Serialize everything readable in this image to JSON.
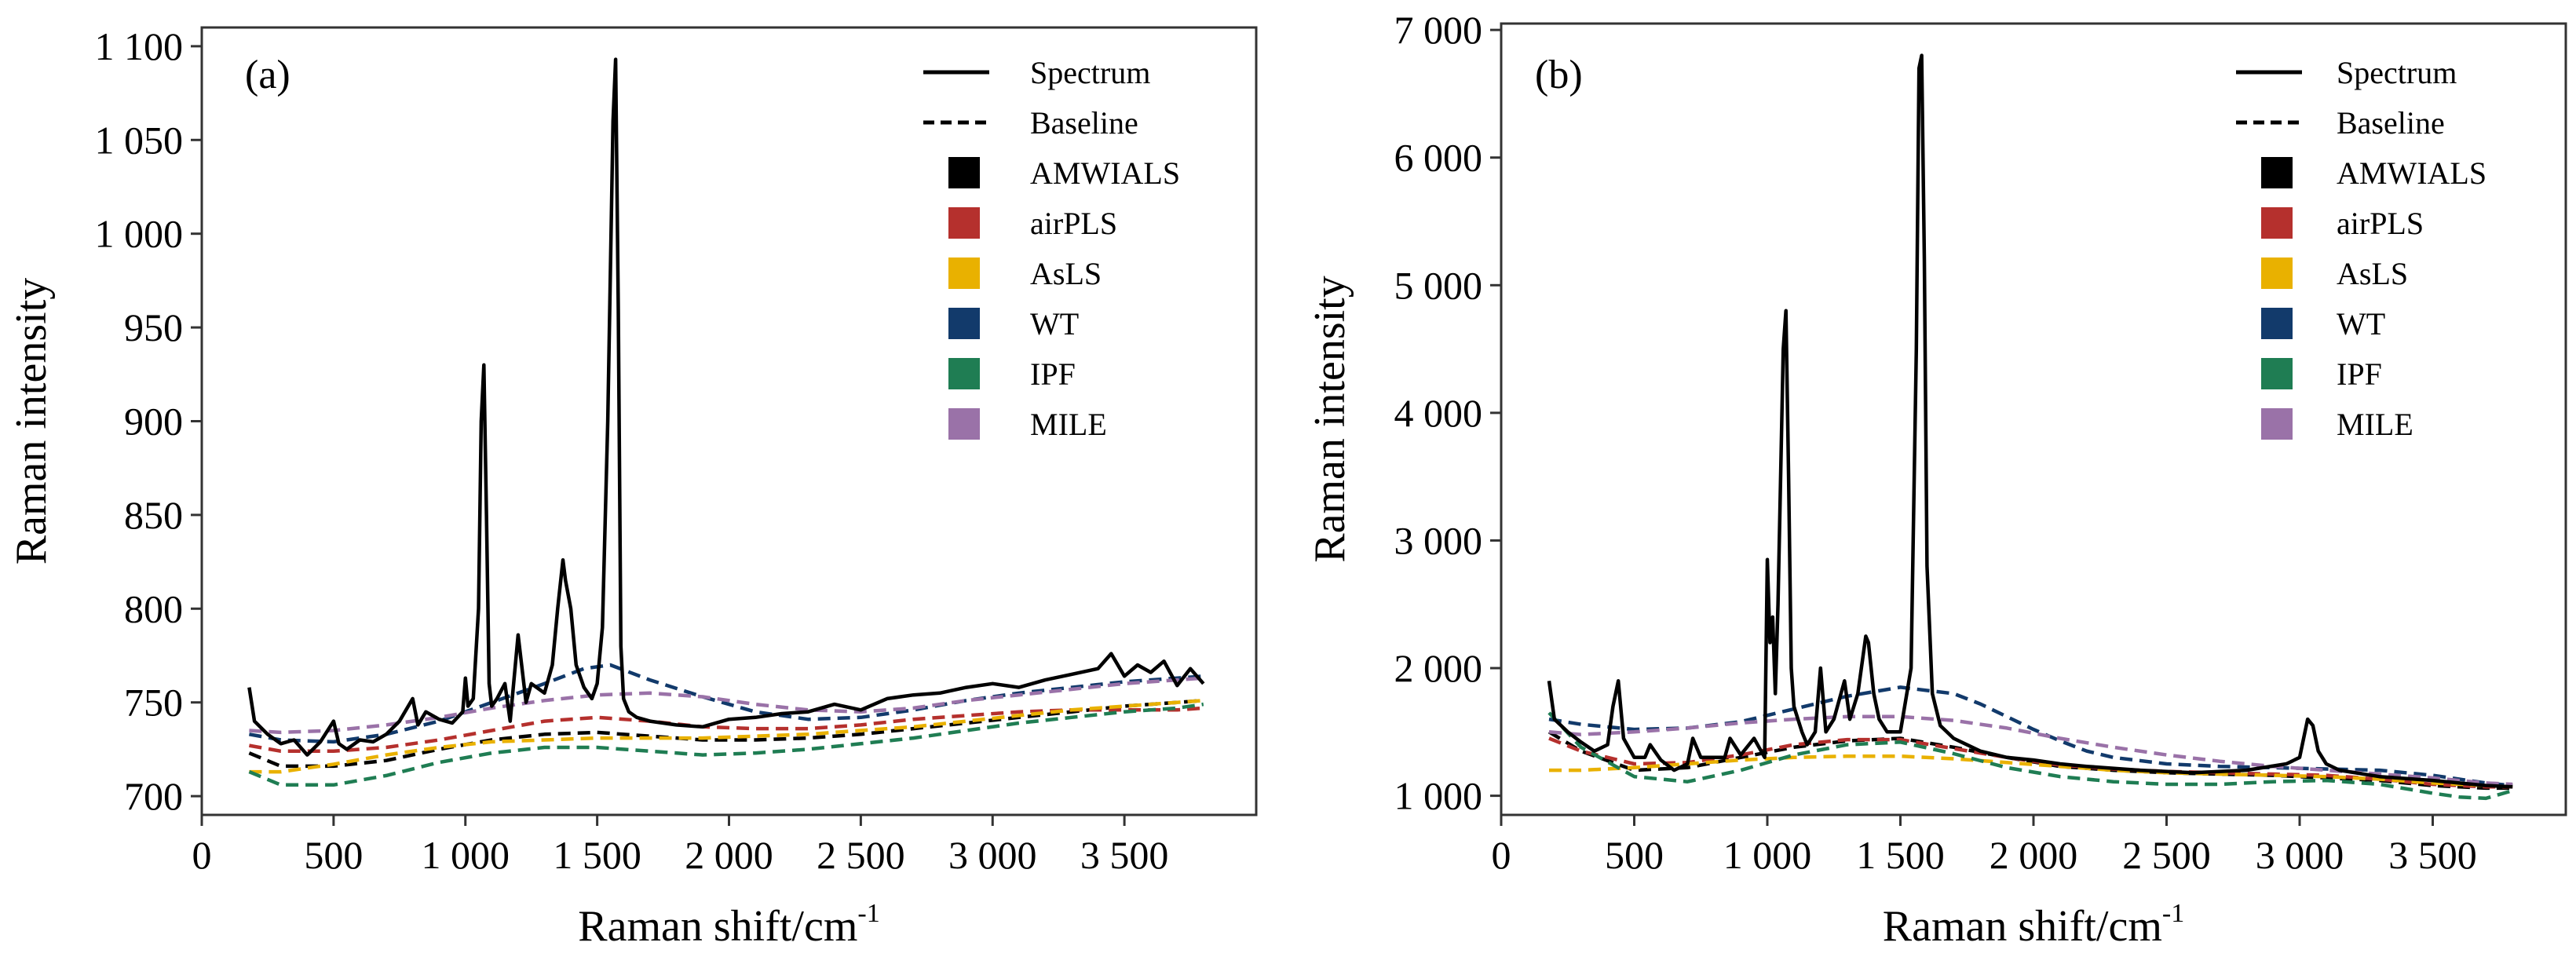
{
  "figure_name": "raman-baseline-comparison",
  "chart_data": [
    {
      "panel": "(a)",
      "type": "line",
      "xlabel": "Raman shift/cm-1",
      "xlabel_main": "Raman shift/cm",
      "xlabel_sup": "-1",
      "ylabel": "Raman intensity",
      "xlim": [
        0,
        4000
      ],
      "ylim": [
        690,
        1110
      ],
      "grid": false,
      "legend_position": "top-right",
      "xticks": [
        0,
        500,
        1000,
        1500,
        2000,
        2500,
        3000,
        3500
      ],
      "xtick_labels": [
        "0",
        "500",
        "1 000",
        "1 500",
        "2 000",
        "2 500",
        "3 000",
        "3 500"
      ],
      "yticks": [
        700,
        750,
        800,
        850,
        900,
        950,
        1000,
        1050,
        1100
      ],
      "ytick_labels": [
        "700",
        "750",
        "800",
        "850",
        "900",
        "950",
        "1 000",
        "1 050",
        "1 100"
      ],
      "legend": [
        {
          "label": "Spectrum",
          "kind": "solid"
        },
        {
          "label": "Baseline",
          "kind": "dashed"
        },
        {
          "label": "AMWIALS",
          "kind": "swatch",
          "color": "#000000"
        },
        {
          "label": "airPLS",
          "kind": "swatch",
          "color": "#b5302d"
        },
        {
          "label": "AsLS",
          "kind": "swatch",
          "color": "#e9b100"
        },
        {
          "label": "WT",
          "kind": "swatch",
          "color": "#123a6b"
        },
        {
          "label": "IPF",
          "kind": "swatch",
          "color": "#1f7d53"
        },
        {
          "label": "MILE",
          "kind": "swatch",
          "color": "#9a72a8"
        }
      ],
      "spectrum": {
        "color": "#000000",
        "x": [
          180,
          200,
          250,
          300,
          350,
          400,
          450,
          500,
          520,
          550,
          600,
          650,
          700,
          750,
          800,
          820,
          850,
          900,
          950,
          990,
          1000,
          1010,
          1030,
          1050,
          1060,
          1070,
          1080,
          1090,
          1100,
          1120,
          1150,
          1170,
          1200,
          1230,
          1250,
          1300,
          1330,
          1350,
          1370,
          1380,
          1400,
          1420,
          1450,
          1480,
          1500,
          1520,
          1540,
          1560,
          1570,
          1580,
          1590,
          1600,
          1620,
          1650,
          1700,
          1800,
          1900,
          2000,
          2100,
          2200,
          2300,
          2400,
          2500,
          2600,
          2700,
          2800,
          2900,
          3000,
          3100,
          3200,
          3300,
          3400,
          3450,
          3500,
          3550,
          3600,
          3650,
          3700,
          3750,
          3800
        ],
        "y": [
          758,
          740,
          733,
          728,
          730,
          722,
          729,
          740,
          728,
          725,
          730,
          729,
          733,
          740,
          752,
          738,
          745,
          741,
          739,
          745,
          763,
          748,
          752,
          800,
          900,
          930,
          850,
          760,
          748,
          752,
          760,
          740,
          786,
          750,
          760,
          755,
          770,
          800,
          826,
          815,
          800,
          770,
          758,
          752,
          760,
          790,
          900,
          1060,
          1093,
          960,
          780,
          752,
          745,
          742,
          740,
          738,
          737,
          741,
          742,
          744,
          745,
          749,
          746,
          752,
          754,
          755,
          758,
          760,
          758,
          762,
          765,
          768,
          776,
          764,
          770,
          766,
          772,
          759,
          768,
          760
        ]
      },
      "series": [
        {
          "name": "AMWIALS",
          "color": "#000000",
          "x": [
            180,
            300,
            500,
            700,
            900,
            1100,
            1300,
            1500,
            1700,
            1900,
            2100,
            2300,
            2500,
            2700,
            2900,
            3100,
            3300,
            3500,
            3700,
            3800
          ],
          "y": [
            723,
            716,
            716,
            719,
            725,
            730,
            733,
            734,
            732,
            730,
            730,
            731,
            733,
            736,
            739,
            742,
            745,
            748,
            750,
            751
          ]
        },
        {
          "name": "airPLS",
          "color": "#b5302d",
          "x": [
            180,
            300,
            500,
            700,
            900,
            1100,
            1300,
            1500,
            1700,
            1900,
            2100,
            2300,
            2500,
            2700,
            2900,
            3100,
            3300,
            3500,
            3700,
            3800
          ],
          "y": [
            727,
            724,
            724,
            726,
            730,
            735,
            740,
            742,
            740,
            737,
            736,
            736,
            738,
            741,
            743,
            745,
            746,
            746,
            746,
            747
          ]
        },
        {
          "name": "AsLS",
          "color": "#e9b100",
          "x": [
            180,
            300,
            500,
            700,
            900,
            1100,
            1300,
            1500,
            1700,
            1900,
            2100,
            2300,
            2500,
            2700,
            2900,
            3100,
            3300,
            3500,
            3700,
            3800
          ],
          "y": [
            713,
            713,
            717,
            722,
            726,
            729,
            730,
            731,
            731,
            731,
            732,
            733,
            735,
            737,
            740,
            743,
            746,
            748,
            750,
            751
          ]
        },
        {
          "name": "WT",
          "color": "#123a6b",
          "x": [
            180,
            300,
            500,
            700,
            900,
            1100,
            1300,
            1450,
            1550,
            1700,
            1900,
            2100,
            2300,
            2500,
            2700,
            2900,
            3100,
            3300,
            3500,
            3700,
            3800
          ],
          "y": [
            733,
            730,
            729,
            733,
            740,
            750,
            760,
            768,
            770,
            762,
            753,
            745,
            741,
            742,
            746,
            751,
            755,
            758,
            761,
            763,
            764
          ]
        },
        {
          "name": "IPF",
          "color": "#1f7d53",
          "x": [
            180,
            300,
            500,
            700,
            900,
            1100,
            1300,
            1500,
            1700,
            1900,
            2100,
            2300,
            2500,
            2700,
            2900,
            3100,
            3300,
            3500,
            3700,
            3800
          ],
          "y": [
            713,
            706,
            706,
            711,
            718,
            723,
            726,
            726,
            724,
            722,
            723,
            725,
            728,
            731,
            735,
            739,
            742,
            745,
            747,
            749
          ]
        },
        {
          "name": "MILE",
          "color": "#9a72a8",
          "x": [
            180,
            300,
            500,
            700,
            900,
            1100,
            1300,
            1500,
            1700,
            1900,
            2100,
            2300,
            2500,
            2700,
            2900,
            3100,
            3300,
            3500,
            3700,
            3800
          ],
          "y": [
            735,
            734,
            735,
            738,
            742,
            747,
            751,
            754,
            755,
            753,
            749,
            746,
            745,
            747,
            751,
            754,
            757,
            760,
            762,
            763
          ]
        }
      ]
    },
    {
      "panel": "(b)",
      "type": "line",
      "xlabel": "Raman shift/cm-1",
      "xlabel_main": "Raman shift/cm",
      "xlabel_sup": "-1",
      "ylabel": "Raman intensity",
      "xlim": [
        0,
        4000
      ],
      "ylim": [
        850,
        7050
      ],
      "grid": false,
      "legend_position": "top-right",
      "xticks": [
        0,
        500,
        1000,
        1500,
        2000,
        2500,
        3000,
        3500
      ],
      "xtick_labels": [
        "0",
        "500",
        "1 000",
        "1 500",
        "2 000",
        "2 500",
        "3 000",
        "3 500"
      ],
      "yticks": [
        1000,
        2000,
        3000,
        4000,
        5000,
        6000,
        7000
      ],
      "ytick_labels": [
        "1 000",
        "2 000",
        "3 000",
        "4 000",
        "5 000",
        "6 000",
        "7 000"
      ],
      "legend": [
        {
          "label": "Spectrum",
          "kind": "solid"
        },
        {
          "label": "Baseline",
          "kind": "dashed"
        },
        {
          "label": "AMWIALS",
          "kind": "swatch",
          "color": "#000000"
        },
        {
          "label": "airPLS",
          "kind": "swatch",
          "color": "#b5302d"
        },
        {
          "label": "AsLS",
          "kind": "swatch",
          "color": "#e9b100"
        },
        {
          "label": "WT",
          "kind": "swatch",
          "color": "#123a6b"
        },
        {
          "label": "IPF",
          "kind": "swatch",
          "color": "#1f7d53"
        },
        {
          "label": "MILE",
          "kind": "swatch",
          "color": "#9a72a8"
        }
      ],
      "spectrum": {
        "color": "#000000",
        "x": [
          180,
          200,
          250,
          300,
          350,
          400,
          420,
          440,
          460,
          500,
          540,
          560,
          600,
          650,
          700,
          720,
          750,
          800,
          840,
          860,
          900,
          950,
          990,
          1000,
          1010,
          1020,
          1030,
          1040,
          1060,
          1070,
          1080,
          1090,
          1100,
          1130,
          1150,
          1180,
          1200,
          1220,
          1250,
          1290,
          1310,
          1340,
          1370,
          1380,
          1400,
          1420,
          1450,
          1500,
          1540,
          1560,
          1570,
          1580,
          1590,
          1600,
          1620,
          1650,
          1700,
          1800,
          1900,
          2000,
          2100,
          2200,
          2400,
          2600,
          2800,
          2950,
          3000,
          3030,
          3050,
          3070,
          3100,
          3150,
          3300,
          3500,
          3700,
          3800
        ],
        "y": [
          1900,
          1600,
          1500,
          1420,
          1350,
          1400,
          1700,
          1900,
          1450,
          1300,
          1300,
          1400,
          1280,
          1200,
          1250,
          1450,
          1300,
          1300,
          1300,
          1450,
          1320,
          1450,
          1300,
          2850,
          2200,
          2400,
          1800,
          2500,
          4500,
          4800,
          3500,
          2000,
          1700,
          1500,
          1400,
          1500,
          2000,
          1500,
          1600,
          1900,
          1600,
          1800,
          2250,
          2200,
          1800,
          1600,
          1500,
          1500,
          2000,
          4500,
          6700,
          6800,
          5200,
          2800,
          1800,
          1550,
          1450,
          1350,
          1300,
          1280,
          1250,
          1230,
          1200,
          1180,
          1200,
          1250,
          1300,
          1600,
          1550,
          1350,
          1250,
          1200,
          1150,
          1120,
          1080,
          1070
        ]
      },
      "series": [
        {
          "name": "AMWIALS",
          "color": "#000000",
          "x": [
            180,
            300,
            500,
            700,
            900,
            1100,
            1300,
            1500,
            1700,
            1900,
            2100,
            2300,
            2500,
            2700,
            2900,
            3100,
            3300,
            3500,
            3700,
            3800
          ],
          "y": [
            1500,
            1350,
            1200,
            1220,
            1300,
            1380,
            1430,
            1450,
            1380,
            1300,
            1230,
            1200,
            1180,
            1170,
            1160,
            1140,
            1120,
            1080,
            1060,
            1060
          ]
        },
        {
          "name": "airPLS",
          "color": "#b5302d",
          "x": [
            180,
            300,
            500,
            700,
            900,
            1100,
            1300,
            1500,
            1700,
            1900,
            2100,
            2300,
            2500,
            2700,
            2900,
            3100,
            3300,
            3500,
            3700,
            3800
          ],
          "y": [
            1450,
            1350,
            1250,
            1260,
            1320,
            1400,
            1440,
            1440,
            1370,
            1300,
            1240,
            1210,
            1190,
            1180,
            1170,
            1160,
            1130,
            1090,
            1070,
            1070
          ]
        },
        {
          "name": "AsLS",
          "color": "#e9b100",
          "x": [
            180,
            300,
            500,
            700,
            900,
            1100,
            1300,
            1500,
            1700,
            1900,
            2100,
            2300,
            2500,
            2700,
            2900,
            3100,
            3300,
            3500,
            3700,
            3800
          ],
          "y": [
            1200,
            1200,
            1220,
            1250,
            1280,
            1300,
            1310,
            1310,
            1290,
            1260,
            1230,
            1200,
            1180,
            1170,
            1160,
            1150,
            1130,
            1100,
            1080,
            1080
          ]
        },
        {
          "name": "WT",
          "color": "#123a6b",
          "x": [
            180,
            300,
            500,
            700,
            900,
            1100,
            1300,
            1500,
            1700,
            1800,
            1900,
            2000,
            2100,
            2200,
            2300,
            2500,
            2700,
            2900,
            3100,
            3300,
            3500,
            3700,
            3800
          ],
          "y": [
            1600,
            1560,
            1520,
            1530,
            1580,
            1680,
            1780,
            1850,
            1800,
            1720,
            1620,
            1520,
            1430,
            1350,
            1300,
            1250,
            1230,
            1220,
            1210,
            1200,
            1160,
            1100,
            1080
          ]
        },
        {
          "name": "IPF",
          "color": "#1f7d53",
          "x": [
            180,
            300,
            500,
            700,
            900,
            1100,
            1300,
            1500,
            1700,
            1900,
            2100,
            2300,
            2500,
            2700,
            2900,
            3100,
            3300,
            3500,
            3600,
            3700,
            3800
          ],
          "y": [
            1650,
            1380,
            1150,
            1110,
            1200,
            1320,
            1400,
            1420,
            1330,
            1220,
            1150,
            1110,
            1090,
            1090,
            1110,
            1120,
            1090,
            1020,
            990,
            980,
            1040
          ]
        },
        {
          "name": "MILE",
          "color": "#9a72a8",
          "x": [
            180,
            300,
            500,
            700,
            900,
            1100,
            1300,
            1500,
            1700,
            1900,
            2100,
            2300,
            2500,
            2700,
            2900,
            3100,
            3300,
            3500,
            3700,
            3800
          ],
          "y": [
            1500,
            1480,
            1500,
            1530,
            1570,
            1600,
            1620,
            1620,
            1590,
            1530,
            1450,
            1380,
            1320,
            1270,
            1230,
            1200,
            1170,
            1140,
            1100,
            1090
          ]
        }
      ]
    }
  ]
}
